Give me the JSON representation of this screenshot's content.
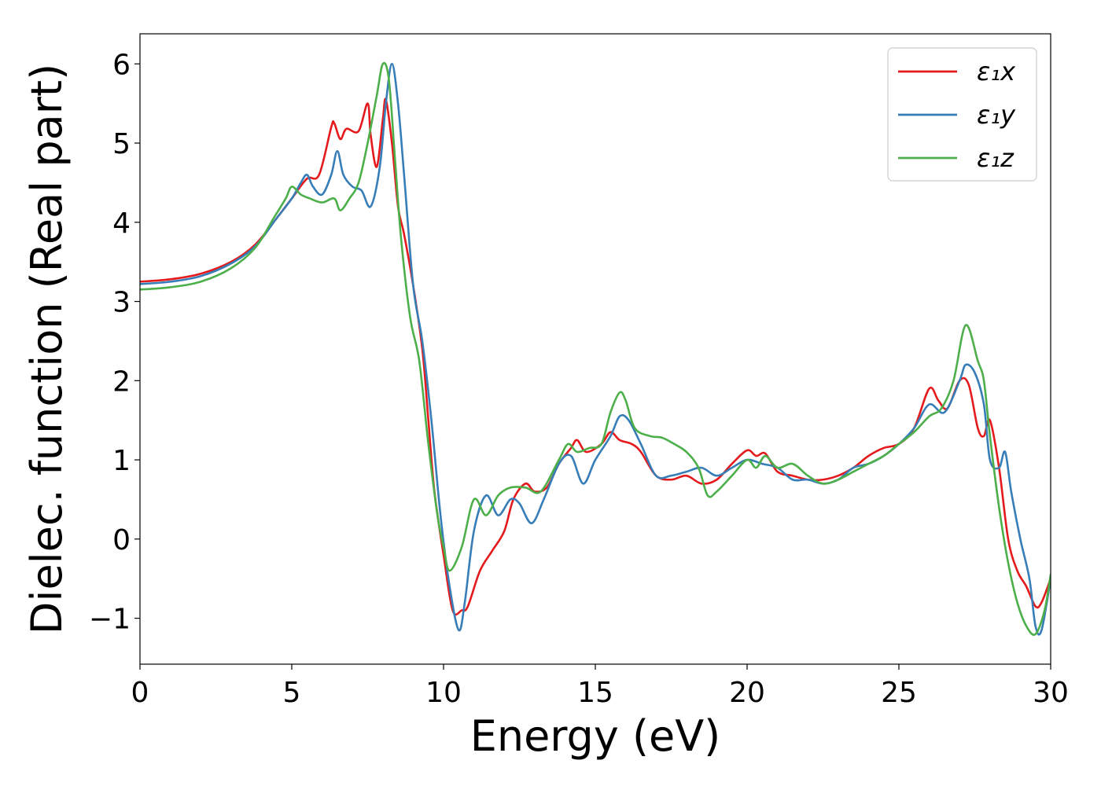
{
  "chart_data": {
    "type": "line",
    "xlabel": "Energy (eV)",
    "ylabel": "Dielec. function (Real part)",
    "xlim": [
      0,
      30
    ],
    "ylim": [
      -1.58,
      6.38
    ],
    "xticks": [
      0,
      5,
      10,
      15,
      20,
      25,
      30
    ],
    "xtick_labels": [
      "0",
      "5",
      "10",
      "15",
      "20",
      "25",
      "30"
    ],
    "yticks": [
      -1,
      0,
      1,
      2,
      3,
      4,
      5,
      6
    ],
    "ytick_labels": [
      "−1",
      "0",
      "1",
      "2",
      "3",
      "4",
      "5",
      "6"
    ],
    "grid": false,
    "legend_position": "top-right",
    "series": [
      {
        "name": "ε₁x",
        "color": "#e41a1c",
        "points": [
          [
            0,
            3.25
          ],
          [
            1,
            3.28
          ],
          [
            2,
            3.35
          ],
          [
            3,
            3.5
          ],
          [
            3.8,
            3.72
          ],
          [
            4.5,
            4.05
          ],
          [
            5.0,
            4.3
          ],
          [
            5.5,
            4.55
          ],
          [
            5.9,
            4.6
          ],
          [
            6.3,
            5.2
          ],
          [
            6.4,
            5.25
          ],
          [
            6.6,
            5.05
          ],
          [
            6.8,
            5.18
          ],
          [
            7.2,
            5.15
          ],
          [
            7.5,
            5.5
          ],
          [
            7.6,
            5.1
          ],
          [
            7.8,
            4.7
          ],
          [
            8.0,
            5.3
          ],
          [
            8.1,
            5.55
          ],
          [
            8.3,
            5.0
          ],
          [
            8.5,
            4.2
          ],
          [
            8.7,
            3.85
          ],
          [
            9.0,
            3.2
          ],
          [
            9.3,
            2.4
          ],
          [
            9.5,
            1.5
          ],
          [
            9.7,
            0.6
          ],
          [
            10.0,
            -0.2
          ],
          [
            10.3,
            -0.9
          ],
          [
            10.6,
            -0.9
          ],
          [
            10.8,
            -0.85
          ],
          [
            11.2,
            -0.4
          ],
          [
            11.6,
            -0.15
          ],
          [
            12.0,
            0.1
          ],
          [
            12.3,
            0.5
          ],
          [
            12.7,
            0.7
          ],
          [
            13.0,
            0.6
          ],
          [
            13.4,
            0.65
          ],
          [
            13.8,
            0.95
          ],
          [
            14.2,
            1.15
          ],
          [
            14.4,
            1.25
          ],
          [
            14.7,
            1.1
          ],
          [
            15.2,
            1.2
          ],
          [
            15.5,
            1.35
          ],
          [
            15.8,
            1.25
          ],
          [
            16.2,
            1.2
          ],
          [
            16.5,
            1.1
          ],
          [
            17.0,
            0.8
          ],
          [
            17.5,
            0.75
          ],
          [
            18.0,
            0.8
          ],
          [
            18.5,
            0.7
          ],
          [
            19.0,
            0.75
          ],
          [
            19.5,
            0.95
          ],
          [
            20.0,
            1.12
          ],
          [
            20.3,
            1.05
          ],
          [
            20.6,
            1.08
          ],
          [
            21.0,
            0.85
          ],
          [
            21.5,
            0.8
          ],
          [
            22.0,
            0.75
          ],
          [
            22.5,
            0.75
          ],
          [
            23.0,
            0.8
          ],
          [
            23.5,
            0.9
          ],
          [
            24.0,
            1.05
          ],
          [
            24.5,
            1.15
          ],
          [
            25.0,
            1.2
          ],
          [
            25.5,
            1.4
          ],
          [
            26.0,
            1.9
          ],
          [
            26.3,
            1.75
          ],
          [
            26.6,
            1.65
          ],
          [
            27.0,
            2.0
          ],
          [
            27.3,
            1.95
          ],
          [
            27.6,
            1.4
          ],
          [
            27.8,
            1.3
          ],
          [
            28.0,
            1.5
          ],
          [
            28.3,
            0.9
          ],
          [
            28.6,
            0.0
          ],
          [
            28.9,
            -0.4
          ],
          [
            29.2,
            -0.6
          ],
          [
            29.5,
            -0.85
          ],
          [
            29.7,
            -0.8
          ],
          [
            30.0,
            -0.5
          ]
        ]
      },
      {
        "name": "ε₁y",
        "color": "#377eb8",
        "points": [
          [
            0,
            3.22
          ],
          [
            1,
            3.25
          ],
          [
            2,
            3.32
          ],
          [
            3,
            3.48
          ],
          [
            3.8,
            3.7
          ],
          [
            4.5,
            4.05
          ],
          [
            5.0,
            4.3
          ],
          [
            5.3,
            4.5
          ],
          [
            5.5,
            4.6
          ],
          [
            5.7,
            4.45
          ],
          [
            6.0,
            4.35
          ],
          [
            6.3,
            4.6
          ],
          [
            6.5,
            4.9
          ],
          [
            6.7,
            4.6
          ],
          [
            7.0,
            4.45
          ],
          [
            7.3,
            4.4
          ],
          [
            7.6,
            4.2
          ],
          [
            7.9,
            4.7
          ],
          [
            8.1,
            5.5
          ],
          [
            8.3,
            6.0
          ],
          [
            8.5,
            5.5
          ],
          [
            8.7,
            4.6
          ],
          [
            9.0,
            3.2
          ],
          [
            9.3,
            2.5
          ],
          [
            9.6,
            1.5
          ],
          [
            9.9,
            0.3
          ],
          [
            10.2,
            -0.6
          ],
          [
            10.5,
            -1.15
          ],
          [
            10.7,
            -0.8
          ],
          [
            11.0,
            0.1
          ],
          [
            11.4,
            0.55
          ],
          [
            11.8,
            0.3
          ],
          [
            12.2,
            0.5
          ],
          [
            12.5,
            0.45
          ],
          [
            12.9,
            0.2
          ],
          [
            13.3,
            0.5
          ],
          [
            13.8,
            0.95
          ],
          [
            14.2,
            1.05
          ],
          [
            14.6,
            0.7
          ],
          [
            15.0,
            1.0
          ],
          [
            15.5,
            1.3
          ],
          [
            15.8,
            1.55
          ],
          [
            16.1,
            1.5
          ],
          [
            16.5,
            1.2
          ],
          [
            17.0,
            0.8
          ],
          [
            17.5,
            0.8
          ],
          [
            18.0,
            0.85
          ],
          [
            18.5,
            0.9
          ],
          [
            19.0,
            0.8
          ],
          [
            19.5,
            0.9
          ],
          [
            20.0,
            1.0
          ],
          [
            20.5,
            0.95
          ],
          [
            21.0,
            0.9
          ],
          [
            21.5,
            0.75
          ],
          [
            22.0,
            0.75
          ],
          [
            22.5,
            0.7
          ],
          [
            23.0,
            0.75
          ],
          [
            23.5,
            0.9
          ],
          [
            24.0,
            0.95
          ],
          [
            24.5,
            1.05
          ],
          [
            25.0,
            1.2
          ],
          [
            25.5,
            1.4
          ],
          [
            26.0,
            1.7
          ],
          [
            26.5,
            1.6
          ],
          [
            27.0,
            2.0
          ],
          [
            27.2,
            2.2
          ],
          [
            27.5,
            2.1
          ],
          [
            27.8,
            1.7
          ],
          [
            28.0,
            1.0
          ],
          [
            28.3,
            0.9
          ],
          [
            28.5,
            1.1
          ],
          [
            28.7,
            0.6
          ],
          [
            29.0,
            0.0
          ],
          [
            29.3,
            -0.5
          ],
          [
            29.5,
            -1.1
          ],
          [
            29.7,
            -1.15
          ],
          [
            30.0,
            -0.5
          ]
        ]
      },
      {
        "name": "ε₁z",
        "color": "#4daf4a",
        "points": [
          [
            0,
            3.15
          ],
          [
            1,
            3.18
          ],
          [
            2,
            3.25
          ],
          [
            3,
            3.42
          ],
          [
            3.8,
            3.68
          ],
          [
            4.4,
            4.05
          ],
          [
            4.8,
            4.3
          ],
          [
            5.0,
            4.45
          ],
          [
            5.3,
            4.35
          ],
          [
            5.6,
            4.3
          ],
          [
            6.0,
            4.25
          ],
          [
            6.4,
            4.3
          ],
          [
            6.6,
            4.15
          ],
          [
            6.9,
            4.3
          ],
          [
            7.2,
            4.5
          ],
          [
            7.5,
            5.0
          ],
          [
            7.8,
            5.6
          ],
          [
            8.0,
            6.0
          ],
          [
            8.2,
            5.8
          ],
          [
            8.4,
            4.8
          ],
          [
            8.6,
            3.8
          ],
          [
            8.9,
            2.8
          ],
          [
            9.2,
            2.25
          ],
          [
            9.5,
            1.2
          ],
          [
            9.8,
            0.3
          ],
          [
            10.0,
            -0.1
          ],
          [
            10.2,
            -0.4
          ],
          [
            10.6,
            -0.1
          ],
          [
            11.0,
            0.5
          ],
          [
            11.4,
            0.3
          ],
          [
            11.8,
            0.55
          ],
          [
            12.2,
            0.65
          ],
          [
            12.7,
            0.65
          ],
          [
            13.2,
            0.6
          ],
          [
            13.8,
            1.0
          ],
          [
            14.1,
            1.2
          ],
          [
            14.4,
            1.1
          ],
          [
            14.8,
            1.15
          ],
          [
            15.2,
            1.2
          ],
          [
            15.5,
            1.6
          ],
          [
            15.8,
            1.85
          ],
          [
            16.0,
            1.75
          ],
          [
            16.3,
            1.4
          ],
          [
            16.8,
            1.3
          ],
          [
            17.2,
            1.28
          ],
          [
            17.6,
            1.2
          ],
          [
            18.0,
            1.1
          ],
          [
            18.4,
            0.9
          ],
          [
            18.7,
            0.55
          ],
          [
            19.0,
            0.6
          ],
          [
            19.5,
            0.8
          ],
          [
            20.0,
            1.0
          ],
          [
            20.3,
            0.9
          ],
          [
            20.6,
            1.05
          ],
          [
            21.0,
            0.9
          ],
          [
            21.5,
            0.95
          ],
          [
            22.0,
            0.8
          ],
          [
            22.5,
            0.7
          ],
          [
            23.0,
            0.75
          ],
          [
            23.5,
            0.85
          ],
          [
            24.0,
            0.95
          ],
          [
            24.5,
            1.05
          ],
          [
            25.0,
            1.2
          ],
          [
            25.5,
            1.35
          ],
          [
            26.0,
            1.55
          ],
          [
            26.4,
            1.65
          ],
          [
            26.8,
            2.0
          ],
          [
            27.2,
            2.7
          ],
          [
            27.6,
            2.25
          ],
          [
            27.8,
            2.0
          ],
          [
            28.0,
            1.3
          ],
          [
            28.3,
            0.4
          ],
          [
            28.6,
            -0.3
          ],
          [
            28.9,
            -0.8
          ],
          [
            29.2,
            -1.1
          ],
          [
            29.5,
            -1.2
          ],
          [
            29.8,
            -0.9
          ],
          [
            30.0,
            -0.45
          ]
        ]
      }
    ]
  }
}
